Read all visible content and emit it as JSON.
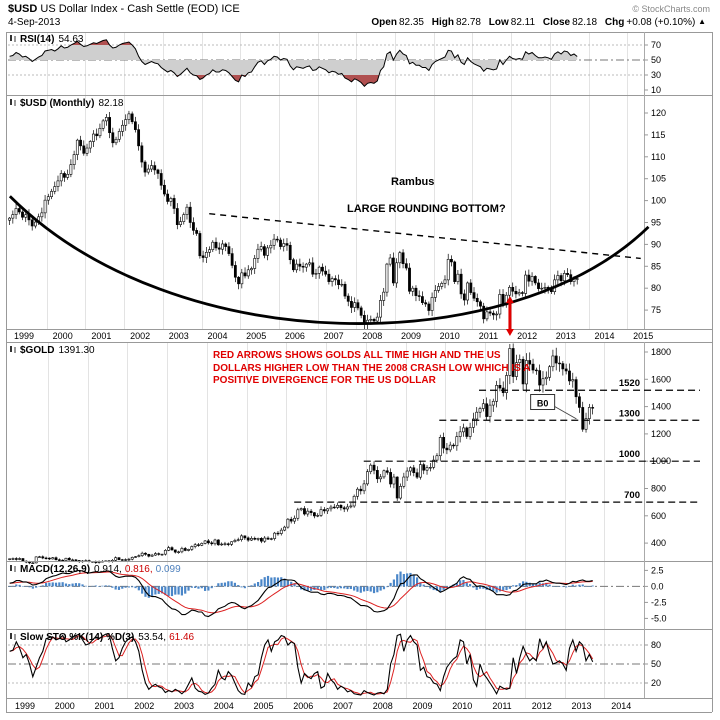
{
  "header": {
    "symbol": "$USD",
    "title_rest": "US Dollar Index - Cash Settle (EOD) ICE",
    "copyright": "© StockCharts.com",
    "date": "4-Sep-2013",
    "quote": {
      "open_label": "Open",
      "open": "82.35",
      "high_label": "High",
      "high": "82.78",
      "low_label": "Low",
      "low": "82.11",
      "close_label": "Close",
      "close": "82.18",
      "chg_label": "Chg",
      "chg": "+0.08 (+0.10%)",
      "direction_icon": "▲"
    }
  },
  "panels": {
    "rsi": {
      "label": "RSI(14)",
      "value": "54.63",
      "axis": [
        "70",
        "50",
        "30",
        "10"
      ]
    },
    "usd": {
      "label": "$USD (Monthly)",
      "value": "82.18",
      "axis": [
        "120",
        "115",
        "110",
        "105",
        "100",
        "95",
        "90",
        "85",
        "80",
        "75"
      ],
      "annotation_author": "Rambus",
      "annotation_pattern": "LARGE ROUNDING BOTTOM?"
    },
    "gold": {
      "label": "$GOLD",
      "value": "1391.30",
      "axis": [
        "1800",
        "1600",
        "1400",
        "1200",
        "1000",
        "800",
        "600",
        "400"
      ],
      "note": "RED ARROWS SHOWS GOLDS ALL TIME HIGH AND THE US DOLLARS HIGHER LOW THAN THE 2008 CRASH LOW WHICH IS A POSITIVE DIVERGENCE FOR THE US DOLLAR"
    },
    "macd": {
      "label": "MACD(12,26,9)",
      "value_macd": "0.914,",
      "value_signal": "0.816,",
      "value_hist": "0.099",
      "axis": [
        "2.5",
        "0.0",
        "-2.5",
        "-5.0"
      ]
    },
    "sto": {
      "label": "Slow STO %K(14) %D(3)",
      "value_k": "53.54,",
      "value_d": "61.46",
      "axis": [
        "80",
        "50",
        "20"
      ]
    }
  },
  "x_axis_top": [
    "1999",
    "2000",
    "2001",
    "2002",
    "2003",
    "2004",
    "2005",
    "2006",
    "2007",
    "2008",
    "2009",
    "2010",
    "2011",
    "2012",
    "2013",
    "2014",
    "2015"
  ],
  "x_axis_bottom": [
    "1999",
    "2000",
    "2001",
    "2002",
    "2003",
    "2004",
    "2005",
    "2006",
    "2007",
    "2008",
    "2009",
    "2010",
    "2011",
    "2012",
    "2013",
    "2014"
  ],
  "chart_data": {
    "interval": "monthly",
    "x_start_year": 1999,
    "points": 177,
    "colors": {
      "candle_up": "#ffffff",
      "candle_down": "#000000",
      "macd_histogram": "#4a86c8",
      "signal_line": "#dd2222",
      "annotation_red": "#e00000"
    },
    "usd_monthly": {
      "type": "candlestick",
      "title": "$USD (Monthly)",
      "last": 82.18,
      "ylim": [
        71,
        123.5
      ],
      "closes": [
        96.0,
        96.8,
        98.2,
        97.4,
        96.2,
        96.8,
        95.6,
        94.2,
        95.1,
        96.3,
        97.2,
        100.1,
        100.9,
        102.1,
        103.2,
        104.5,
        106.2,
        105.3,
        106.0,
        108.2,
        110.5,
        113.8,
        112.5,
        110.8,
        112.0,
        113.5,
        115.2,
        114.8,
        116.5,
        118.2,
        119.0,
        115.5,
        113.2,
        114.0,
        115.8,
        117.2,
        118.5,
        119.8,
        118.0,
        116.2,
        112.5,
        108.8,
        106.5,
        107.2,
        108.0,
        107.0,
        106.2,
        103.5,
        101.5,
        99.8,
        100.5,
        98.2,
        94.5,
        95.2,
        96.8,
        98.5,
        95.0,
        93.2,
        92.5,
        87.4,
        87.0,
        88.2,
        88.8,
        90.5,
        89.2,
        88.9,
        90.1,
        89.5,
        87.9,
        85.2,
        82.5,
        81.0,
        83.5,
        82.8,
        84.2,
        84.5,
        86.8,
        88.9,
        89.5,
        87.5,
        89.2,
        89.8,
        91.2,
        91.0,
        89.5,
        90.2,
        89.8,
        86.5,
        84.2,
        85.5,
        85.0,
        84.8,
        85.5,
        85.8,
        83.2,
        83.4,
        84.8,
        83.9,
        83.2,
        81.5,
        82.2,
        81.9,
        80.8,
        80.9,
        78.2,
        77.0,
        75.6,
        76.7,
        75.5,
        73.8,
        71.8,
        72.7,
        72.9,
        72.5,
        73.4,
        77.2,
        79.1,
        85.5,
        86.9,
        81.2,
        85.8,
        88.1,
        85.6,
        84.6,
        79.3,
        80.0,
        78.3,
        78.1,
        76.7,
        76.4,
        74.9,
        77.9,
        79.5,
        80.4,
        81.1,
        81.9,
        86.6,
        86.0,
        81.5,
        83.2,
        78.7,
        77.3,
        81.2,
        79.0,
        77.7,
        76.9,
        75.9,
        73.0,
        74.6,
        74.3,
        73.9,
        74.1,
        78.6,
        76.2,
        78.4,
        80.2,
        79.3,
        78.7,
        79.0,
        78.8,
        83.0,
        81.6,
        82.7,
        81.2,
        79.9,
        80.0,
        80.2,
        79.8,
        79.2,
        81.9,
        82.9,
        81.7,
        83.4,
        83.1,
        81.5,
        82.1,
        82.18
      ]
    },
    "gold_monthly": {
      "type": "candlestick",
      "title": "$GOLD",
      "last": 1391.3,
      "ylim": [
        280,
        1870
      ],
      "closes": [
        285,
        287,
        280,
        287,
        268,
        261,
        255,
        255,
        299,
        300,
        291,
        290,
        284,
        293,
        278,
        275,
        272,
        289,
        276,
        277,
        273,
        264,
        269,
        272,
        264,
        266,
        257,
        263,
        267,
        270,
        266,
        274,
        293,
        279,
        275,
        279,
        282,
        296,
        301,
        308,
        326,
        318,
        304,
        312,
        323,
        318,
        319,
        347,
        367,
        350,
        334,
        336,
        361,
        346,
        354,
        375,
        388,
        384,
        398,
        416,
        402,
        395,
        423,
        387,
        393,
        395,
        391,
        410,
        420,
        425,
        453,
        438,
        422,
        435,
        428,
        435,
        414,
        437,
        429,
        433,
        473,
        470,
        495,
        517,
        575,
        561,
        582,
        644,
        653,
        613,
        634,
        623,
        599,
        603,
        646,
        636,
        651,
        664,
        661,
        677,
        659,
        650,
        665,
        672,
        743,
        795,
        783,
        834,
        923,
        971,
        933,
        871,
        885,
        930,
        918,
        833,
        884,
        730,
        816,
        884,
        928,
        952,
        916,
        883,
        975,
        934,
        953,
        955,
        1008,
        1040,
        1175,
        1096,
        1083,
        1118,
        1113,
        1180,
        1215,
        1244,
        1181,
        1248,
        1309,
        1359,
        1386,
        1421,
        1327,
        1411,
        1439,
        1556,
        1536,
        1502,
        1628,
        1826,
        1620,
        1722,
        1746,
        1566,
        1738,
        1711,
        1668,
        1664,
        1558,
        1604,
        1615,
        1692,
        1771,
        1719,
        1715,
        1676,
        1661,
        1588,
        1598,
        1472,
        1394,
        1234,
        1312,
        1394,
        1391.3
      ]
    },
    "rsi": {
      "type": "line",
      "name": "RSI(14)",
      "last": 54.63,
      "ylim": [
        0,
        100
      ],
      "reference_lines": [
        70,
        50,
        30
      ],
      "values": [
        55,
        56,
        60,
        58,
        54,
        55,
        52,
        48,
        51,
        54,
        56,
        62,
        63,
        64,
        62,
        65,
        69,
        66,
        67,
        70,
        72,
        75,
        71,
        68,
        69,
        71,
        73,
        72,
        74,
        76,
        77,
        70,
        66,
        67,
        70,
        72,
        73,
        74,
        70,
        65,
        55,
        48,
        44,
        46,
        48,
        46,
        45,
        40,
        37,
        34,
        36,
        33,
        28,
        31,
        35,
        39,
        33,
        30,
        29,
        24,
        26,
        30,
        32,
        37,
        34,
        34,
        37,
        36,
        33,
        28,
        23,
        21,
        30,
        28,
        33,
        34,
        41,
        47,
        49,
        44,
        49,
        51,
        55,
        54,
        50,
        52,
        51,
        42,
        37,
        41,
        40,
        39,
        41,
        42,
        36,
        37,
        41,
        39,
        37,
        33,
        35,
        34,
        31,
        32,
        26,
        24,
        21,
        25,
        23,
        20,
        15,
        19,
        20,
        19,
        22,
        36,
        41,
        58,
        61,
        50,
        58,
        63,
        58,
        56,
        45,
        47,
        43,
        43,
        40,
        40,
        36,
        44,
        48,
        50,
        52,
        54,
        63,
        62,
        53,
        57,
        47,
        44,
        53,
        48,
        45,
        43,
        41,
        35,
        39,
        38,
        37,
        38,
        50,
        44,
        50,
        55,
        52,
        51,
        52,
        51,
        61,
        58,
        60,
        56,
        53,
        53,
        54,
        53,
        51,
        58,
        61,
        58,
        62,
        61,
        56,
        58,
        54.63
      ]
    },
    "macd": {
      "type": "line+histogram",
      "name": "MACD(12,26,9)",
      "last": [
        0.914,
        0.816,
        0.099
      ],
      "ylim": [
        -6.6,
        3.9
      ],
      "macd_line": [
        0.5,
        0.6,
        0.9,
        0.9,
        0.7,
        0.7,
        0.5,
        0.2,
        0.3,
        0.5,
        0.7,
        1.2,
        1.4,
        1.6,
        1.7,
        1.9,
        2.1,
        2.0,
        2.0,
        2.2,
        2.4,
        2.5,
        2.4,
        2.2,
        2.1,
        2.2,
        2.3,
        2.2,
        2.3,
        2.4,
        2.4,
        2.0,
        1.6,
        1.4,
        1.5,
        1.6,
        1.6,
        1.6,
        1.4,
        0.9,
        0.1,
        -0.8,
        -1.4,
        -1.6,
        -1.6,
        -1.8,
        -2.0,
        -2.6,
        -3.1,
        -3.5,
        -3.6,
        -3.9,
        -4.4,
        -4.4,
        -4.1,
        -3.7,
        -3.8,
        -4.0,
        -4.0,
        -4.6,
        -4.7,
        -4.4,
        -4.1,
        -3.5,
        -3.3,
        -3.1,
        -2.7,
        -2.5,
        -2.6,
        -2.9,
        -3.3,
        -3.5,
        -3.2,
        -3.0,
        -2.6,
        -2.2,
        -1.5,
        -0.8,
        -0.2,
        -0.1,
        0.3,
        0.6,
        1.0,
        1.1,
        1.0,
        1.0,
        0.9,
        0.4,
        -0.2,
        -0.5,
        -0.7,
        -0.9,
        -0.9,
        -0.9,
        -1.2,
        -1.3,
        -1.1,
        -1.1,
        -1.2,
        -1.4,
        -1.4,
        -1.5,
        -1.7,
        -1.8,
        -2.2,
        -2.6,
        -3.0,
        -3.0,
        -3.1,
        -3.4,
        -3.9,
        -4.0,
        -3.9,
        -3.8,
        -3.5,
        -2.7,
        -1.9,
        -0.6,
        0.4,
        0.5,
        1.1,
        1.7,
        1.8,
        1.8,
        1.2,
        0.9,
        0.5,
        0.2,
        -0.2,
        -0.5,
        -0.9,
        -0.7,
        -0.4,
        -0.1,
        0.2,
        0.5,
        1.2,
        1.5,
        1.2,
        1.1,
        0.5,
        0.0,
        0.1,
        0.0,
        -0.3,
        -0.5,
        -0.8,
        -1.3,
        -1.3,
        -1.3,
        -1.4,
        -1.3,
        -0.7,
        -0.6,
        -0.2,
        0.3,
        0.4,
        0.4,
        0.4,
        0.4,
        0.8,
        0.8,
        1.0,
        0.8,
        0.6,
        0.5,
        0.5,
        0.4,
        0.3,
        0.5,
        0.8,
        0.7,
        0.9,
        1.0,
        0.8,
        0.8,
        0.914
      ]
    },
    "slow_sto": {
      "type": "line",
      "name": "Slow STO %K(14) %D(3)",
      "last": [
        53.54,
        61.46
      ],
      "ylim": [
        0,
        100
      ],
      "reference_lines": [
        80,
        50,
        20
      ],
      "k_values": [
        70,
        72,
        85,
        75,
        60,
        65,
        50,
        30,
        45,
        60,
        70,
        90,
        92,
        93,
        88,
        90,
        95,
        85,
        88,
        93,
        95,
        97,
        88,
        80,
        82,
        88,
        93,
        90,
        94,
        97,
        98,
        75,
        55,
        60,
        75,
        85,
        90,
        93,
        85,
        70,
        40,
        20,
        10,
        15,
        18,
        14,
        12,
        5,
        8,
        6,
        10,
        7,
        3,
        8,
        18,
        28,
        12,
        7,
        6,
        2,
        4,
        12,
        18,
        40,
        28,
        25,
        38,
        32,
        20,
        8,
        3,
        2,
        20,
        14,
        30,
        33,
        60,
        80,
        88,
        70,
        85,
        88,
        95,
        93,
        80,
        85,
        82,
        45,
        20,
        35,
        30,
        27,
        35,
        38,
        12,
        15,
        35,
        25,
        20,
        10,
        15,
        12,
        6,
        8,
        3,
        2,
        1,
        8,
        5,
        3,
        1,
        4,
        5,
        3,
        10,
        50,
        65,
        95,
        97,
        70,
        88,
        95,
        85,
        80,
        40,
        45,
        30,
        28,
        20,
        18,
        8,
        30,
        45,
        52,
        58,
        62,
        88,
        85,
        50,
        65,
        25,
        15,
        50,
        35,
        28,
        20,
        12,
        3,
        15,
        12,
        10,
        12,
        60,
        35,
        60,
        78,
        65,
        55,
        60,
        55,
        90,
        75,
        85,
        65,
        50,
        52,
        55,
        50,
        40,
        75,
        88,
        70,
        85,
        80,
        55,
        65,
        53.54
      ]
    },
    "annotations": {
      "rounding_bottom": {
        "points_year_value": [
          [
            1999.05,
            101
          ],
          [
            2003.3,
            63.5
          ],
          [
            2012.0,
            63.5
          ],
          [
            2015.55,
            94
          ]
        ]
      },
      "neckline": {
        "from": [
          2004.2,
          97.0
        ],
        "to": [
          2015.35,
          86.8
        ]
      },
      "red_arrow": {
        "x_year": 2011.97,
        "value_top": 78.2
      },
      "gold_levels": [
        {
          "value": 1520,
          "from_year": 2010.85,
          "label": "1520"
        },
        {
          "value": 1300,
          "from_year": 2009.85,
          "label": "1300"
        },
        {
          "value": 1000,
          "from_year": 2007.95,
          "label": "1000"
        },
        {
          "value": 700,
          "from_year": 2006.2,
          "label": "700"
        }
      ],
      "breakout_box": {
        "label": "B0",
        "x_year": 2012.45,
        "value": 1430,
        "pointer_to": [
          2013.3,
          1310
        ]
      }
    }
  }
}
